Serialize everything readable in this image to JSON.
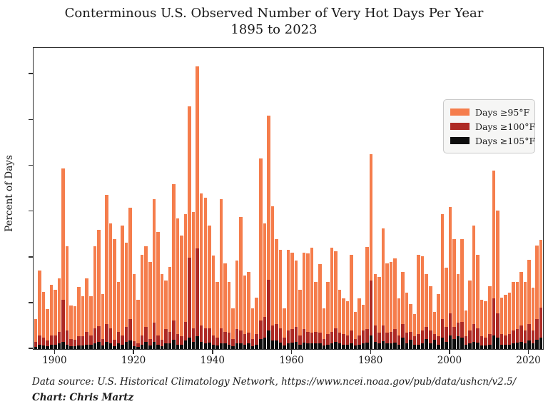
{
  "title": "Conterminous U.S. Observed Number of Very Hot Days Per Year",
  "subtitle": "1895 to 2023",
  "ylabel": "Percent of Days",
  "footer": {
    "source_line": "Data source: U.S. Historical Climatology Network, https://www.ncei.noaa.gov/pub/data/ushcn/v2.5/",
    "credit_line": "Chart: Chris Martz"
  },
  "legend": {
    "items": [
      {
        "label": "Days ≥95°F",
        "color_key": "ge95"
      },
      {
        "label": "Days ≥100°F",
        "color_key": "ge100"
      },
      {
        "label": "Days ≥105°F",
        "color_key": "ge105"
      }
    ],
    "position": "upper right"
  },
  "colors": {
    "ge95": "#f57d4c",
    "ge100": "#ae2a24",
    "ge105": "#0d0d0d",
    "spine": "#2f2f2f",
    "text": "#1a1a1a"
  },
  "chart_data": {
    "type": "bar",
    "title": "Conterminous U.S. Observed Number of Very Hot Days Per Year 1895 to 2023",
    "xlabel": "",
    "ylabel": "Percent of Days",
    "year_start": 1895,
    "year_end": 2023,
    "ylim": [
      0,
      6.58
    ],
    "yticks": [
      0,
      1,
      2,
      3,
      4,
      5,
      6
    ],
    "xticks": [
      1900,
      1920,
      1940,
      1960,
      1980,
      2000,
      2020
    ],
    "grid": false,
    "legend_position": "upper right",
    "series": [
      {
        "name": "Days ≥95°F",
        "color_key": "ge95",
        "values": [
          0.65,
          1.72,
          1.25,
          0.87,
          1.4,
          1.3,
          1.55,
          3.95,
          2.25,
          0.95,
          0.93,
          1.35,
          1.15,
          1.55,
          1.15,
          2.25,
          2.6,
          1.2,
          3.37,
          2.75,
          2.4,
          1.47,
          2.7,
          2.32,
          3.08,
          1.63,
          1.07,
          2.06,
          2.24,
          1.9,
          3.28,
          2.55,
          1.63,
          1.5,
          1.79,
          3.6,
          2.86,
          2.48,
          2.94,
          5.3,
          3.0,
          6.18,
          3.4,
          3.3,
          2.7,
          2.05,
          1.47,
          3.27,
          1.87,
          1.47,
          0.89,
          1.93,
          2.88,
          1.61,
          1.69,
          0.89,
          1.13,
          4.16,
          2.75,
          5.1,
          3.12,
          2.4,
          2.16,
          0.89,
          2.16,
          2.11,
          1.94,
          1.29,
          2.11,
          2.09,
          2.22,
          1.47,
          1.85,
          0.89,
          1.47,
          2.22,
          2.14,
          1.29,
          1.1,
          1.05,
          2.06,
          0.81,
          1.1,
          0.97,
          2.23,
          4.25,
          1.63,
          1.58,
          2.64,
          1.87,
          1.9,
          1.98,
          1.1,
          1.69,
          1.23,
          0.99,
          0.76,
          2.06,
          2.03,
          1.63,
          1.37,
          0.81,
          1.2,
          2.95,
          1.77,
          3.1,
          2.4,
          1.63,
          2.4,
          0.84,
          1.5,
          2.7,
          2.06,
          1.07,
          1.05,
          1.37,
          3.9,
          3.03,
          1.13,
          1.18,
          1.23,
          1.47,
          1.47,
          1.69,
          1.47,
          1.95,
          1.34,
          2.26,
          2.38
        ]
      },
      {
        "name": "Days ≥100°F",
        "color_key": "ge100",
        "values": [
          0.15,
          0.3,
          0.25,
          0.18,
          0.3,
          0.3,
          0.38,
          1.08,
          0.4,
          0.22,
          0.2,
          0.28,
          0.28,
          0.38,
          0.3,
          0.45,
          0.5,
          0.22,
          0.55,
          0.45,
          0.2,
          0.38,
          0.3,
          0.49,
          0.66,
          0.17,
          0.12,
          0.3,
          0.49,
          0.22,
          0.57,
          0.3,
          0.2,
          0.44,
          0.38,
          0.62,
          0.33,
          0.28,
          0.6,
          2.0,
          0.46,
          2.2,
          0.52,
          0.46,
          0.45,
          0.3,
          0.25,
          0.45,
          0.38,
          0.36,
          0.22,
          0.44,
          0.41,
          0.33,
          0.36,
          0.22,
          0.33,
          0.62,
          0.7,
          1.52,
          0.52,
          0.54,
          0.46,
          0.25,
          0.41,
          0.44,
          0.49,
          0.3,
          0.44,
          0.38,
          0.36,
          0.38,
          0.36,
          0.22,
          0.33,
          0.38,
          0.46,
          0.36,
          0.33,
          0.3,
          0.41,
          0.22,
          0.3,
          0.41,
          0.44,
          1.5,
          0.52,
          0.36,
          0.52,
          0.36,
          0.38,
          0.44,
          0.3,
          0.54,
          0.36,
          0.38,
          0.28,
          0.33,
          0.41,
          0.49,
          0.41,
          0.33,
          0.28,
          0.65,
          0.49,
          0.78,
          0.49,
          0.57,
          0.6,
          0.28,
          0.41,
          0.54,
          0.46,
          0.28,
          0.25,
          0.33,
          1.1,
          0.78,
          0.33,
          0.3,
          0.33,
          0.41,
          0.44,
          0.52,
          0.41,
          0.54,
          0.41,
          0.65,
          0.91
        ]
      },
      {
        "name": "Days ≥105°F",
        "color_key": "ge105",
        "values": [
          0.05,
          0.1,
          0.08,
          0.06,
          0.1,
          0.1,
          0.12,
          0.15,
          0.1,
          0.06,
          0.06,
          0.08,
          0.08,
          0.1,
          0.1,
          0.12,
          0.15,
          0.08,
          0.15,
          0.12,
          0.06,
          0.12,
          0.1,
          0.15,
          0.18,
          0.06,
          0.05,
          0.1,
          0.15,
          0.08,
          0.15,
          0.1,
          0.07,
          0.12,
          0.12,
          0.2,
          0.1,
          0.1,
          0.18,
          0.25,
          0.15,
          0.28,
          0.15,
          0.12,
          0.14,
          0.1,
          0.08,
          0.12,
          0.12,
          0.1,
          0.07,
          0.12,
          0.12,
          0.1,
          0.12,
          0.07,
          0.1,
          0.22,
          0.25,
          0.4,
          0.18,
          0.18,
          0.14,
          0.08,
          0.12,
          0.14,
          0.15,
          0.1,
          0.14,
          0.12,
          0.12,
          0.12,
          0.12,
          0.08,
          0.1,
          0.12,
          0.15,
          0.12,
          0.1,
          0.1,
          0.12,
          0.08,
          0.1,
          0.12,
          0.14,
          0.3,
          0.15,
          0.12,
          0.17,
          0.12,
          0.12,
          0.14,
          0.1,
          0.25,
          0.12,
          0.2,
          0.1,
          0.1,
          0.12,
          0.22,
          0.12,
          0.2,
          0.1,
          0.25,
          0.15,
          0.3,
          0.22,
          0.28,
          0.25,
          0.1,
          0.12,
          0.15,
          0.14,
          0.08,
          0.08,
          0.1,
          0.3,
          0.25,
          0.1,
          0.1,
          0.1,
          0.13,
          0.14,
          0.15,
          0.12,
          0.18,
          0.12,
          0.2,
          0.25
        ]
      }
    ]
  }
}
